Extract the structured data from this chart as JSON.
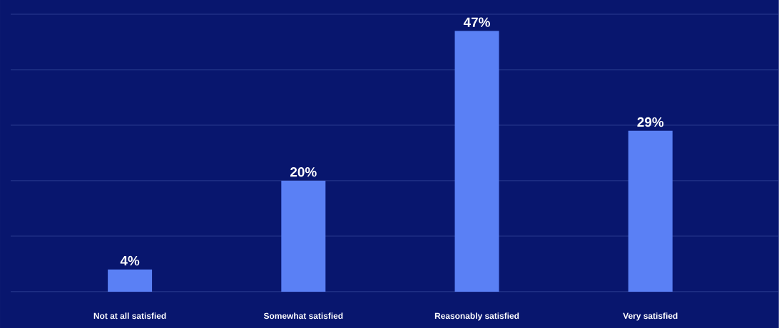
{
  "chart_data": {
    "type": "bar",
    "categories": [
      "Not at all satisfied",
      "Somewhat satisfied",
      "Reasonably satisfied",
      "Very satisfied"
    ],
    "values": [
      4,
      20,
      47,
      29
    ],
    "value_labels": [
      "4%",
      "20%",
      "47%",
      "29%"
    ],
    "color": "#5a80f5",
    "ylim": [
      0,
      50
    ],
    "yticks": [
      {
        "value": 0,
        "label": null
      },
      {
        "value": 10,
        "label": null
      },
      {
        "value": 20,
        "label": null
      },
      {
        "value": 30,
        "label": null
      },
      {
        "value": 40,
        "label": null
      },
      {
        "value": 50,
        "label": null
      }
    ],
    "grid": "y",
    "tick_labels": "x"
  }
}
